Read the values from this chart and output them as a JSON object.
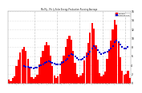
{
  "title": "Mo My - Mo ly Solar Energy Production Running Average",
  "bar_color": "#ff0000",
  "avg_color": "#0000cd",
  "background_color": "#ffffff",
  "grid_color": "#c8c8c8",
  "ylim": [
    0,
    16
  ],
  "yticks": [
    0,
    2,
    4,
    6,
    8,
    10,
    12,
    14,
    16
  ],
  "bar_values": [
    0.8,
    0.5,
    1.2,
    1.5,
    3.8,
    5.2,
    6.8,
    7.5,
    8.1,
    7.2,
    5.5,
    3.2,
    1.4,
    0.9,
    1.3,
    1.8,
    4.2,
    5.8,
    7.2,
    8.5,
    9.2,
    8.4,
    6.1,
    3.8,
    1.7,
    1.1,
    1.5,
    2.1,
    4.8,
    6.2,
    8.1,
    9.8,
    10.5,
    9.6,
    7.2,
    4.5,
    2.0,
    1.3,
    1.6,
    2.3,
    5.1,
    6.8,
    8.9,
    11.2,
    13.5,
    12.1,
    8.5,
    5.2,
    2.3,
    1.5,
    1.8,
    2.6,
    5.5,
    7.2,
    9.5,
    12.0,
    14.2,
    13.0,
    9.2,
    5.8,
    2.7,
    1.8,
    2.0,
    2.8,
    1.2
  ],
  "avg_values": [
    null,
    null,
    null,
    null,
    null,
    null,
    null,
    null,
    3.8,
    3.7,
    3.6,
    3.5,
    3.4,
    3.3,
    3.4,
    3.5,
    3.8,
    4.0,
    4.2,
    4.5,
    4.7,
    4.8,
    4.7,
    4.5,
    4.3,
    4.1,
    4.1,
    4.2,
    4.5,
    4.7,
    5.0,
    5.5,
    6.2,
    6.5,
    6.3,
    5.9,
    5.6,
    5.3,
    5.3,
    5.5,
    5.7,
    6.0,
    6.4,
    7.0,
    7.8,
    8.2,
    7.9,
    7.4,
    6.9,
    6.5,
    6.6,
    6.8,
    7.0,
    7.3,
    7.7,
    8.3,
    9.2,
    9.5,
    9.1,
    8.6,
    8.1,
    7.7,
    7.8,
    8.0,
    null
  ],
  "legend_bar": "Monthly",
  "legend_avg": "Running Avg",
  "n_bars": 65,
  "year_dividers": [
    13.5,
    25.5,
    37.5,
    49.5,
    61.5
  ]
}
